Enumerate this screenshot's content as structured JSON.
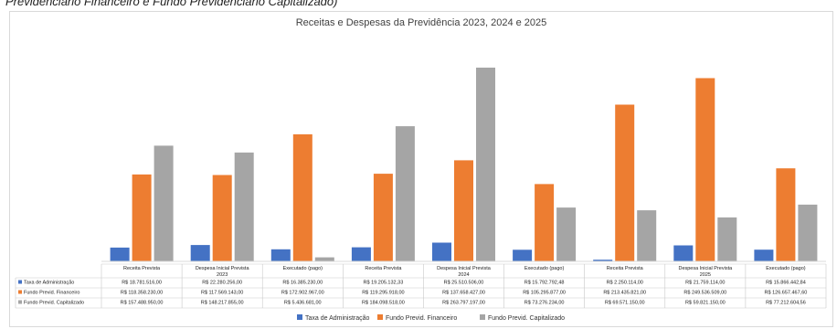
{
  "caption": "Previdenciário Financeiro e Fundo Previdenciário Capitalizado)",
  "chart_data": {
    "type": "bar",
    "title": "Receitas e Despesas da Previdência 2023, 2024 e 2025",
    "groups": [
      "2023",
      "2024",
      "2025"
    ],
    "categories": [
      "Receita Prevista",
      "Despesa Inicial Prevista",
      "Executado (pago)",
      "Receita Prevista",
      "Despesa Inicial Prevista",
      "Executado (pago)",
      "Receita Prevista",
      "Despesa Inicial Prevista",
      "Executado (pago)"
    ],
    "series": [
      {
        "name": "Taxa de Administração",
        "color": "#4472c4",
        "values": [
          18781516.0,
          22280256.0,
          16385230.0,
          19205132.33,
          25510506.0,
          15792792.48,
          2250114.0,
          21759114.0,
          15866442.84
        ],
        "labels": [
          "R$ 18.781.516,00",
          "R$ 22.280.256,00",
          "R$ 16.385.230,00",
          "R$ 19.205.132,33",
          "R$ 25.510.506,00",
          "R$ 15.792.792,48",
          "R$ 2.250.114,00",
          "R$ 21.759.114,00",
          "R$ 15.866.442,84"
        ]
      },
      {
        "name": "Fundo Previd. Financeiro",
        "color": "#ed7d31",
        "values": [
          118358230.0,
          117569143.0,
          172902967.0,
          119295918.0,
          137658427.0,
          105295877.0,
          213435821.0,
          249536509.0,
          126657467.6
        ],
        "labels": [
          "R$ 118.358.230,00",
          "R$ 117.569.143,00",
          "R$ 172.902.967,00",
          "R$ 119.295.918,00",
          "R$ 137.658.427,00",
          "R$ 105.295.877,00",
          "R$ 213.435.821,00",
          "R$ 249.536.509,00",
          "R$ 126.657.467,60"
        ]
      },
      {
        "name": "Fundo Previd. Capitalizado",
        "color": "#a5a5a5",
        "values": [
          157488950.0,
          148217855.0,
          5436681.0,
          184098518.0,
          263797197.0,
          73276234.0,
          69571150.0,
          59821150.0,
          77212604.56
        ],
        "labels": [
          "R$ 157.488.950,00",
          "R$ 148.217.855,00",
          "R$ 5.436.681,00",
          "R$ 184.098.518,00",
          "R$ 263.797.197,00",
          "R$ 73.276.234,00",
          "R$ 69.571.150,00",
          "R$ 59.821.150,00",
          "R$ 77.212.604,56"
        ]
      }
    ],
    "ylim": [
      0,
      275000000
    ],
    "grid": false,
    "legend": "bottom",
    "data_table": true
  }
}
